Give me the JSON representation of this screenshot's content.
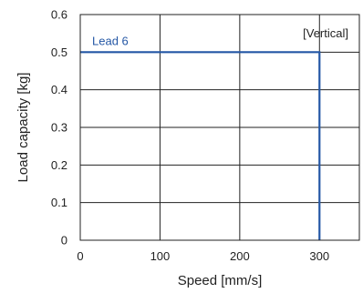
{
  "chart_data": {
    "type": "line",
    "title": "",
    "xlabel": "Speed [mm/s]",
    "ylabel": "Load capacity [kg]",
    "xlim": [
      0,
      350
    ],
    "ylim": [
      0,
      0.6
    ],
    "x_ticks": [
      0,
      100,
      200,
      300
    ],
    "x_tick_labels": [
      "0",
      "100",
      "200",
      "300"
    ],
    "y_ticks": [
      0,
      0.1,
      0.2,
      0.3,
      0.4,
      0.5,
      0.6
    ],
    "y_tick_labels": [
      "0",
      "0.1",
      "0.2",
      "0.3",
      "0.4",
      "0.5",
      "0.6"
    ],
    "grid": true,
    "series": [
      {
        "name": "Lead 6",
        "color": "#2457a5",
        "points": [
          [
            0,
            0.5
          ],
          [
            300,
            0.5
          ],
          [
            300,
            0
          ]
        ]
      }
    ],
    "annotations": [
      {
        "text": "[Vertical]",
        "position": "top-right"
      }
    ]
  }
}
